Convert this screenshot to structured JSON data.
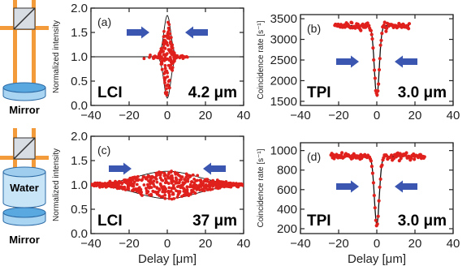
{
  "device": {
    "top_label": "Mirror",
    "water_label": "Water",
    "bottom_label": "Mirror"
  },
  "colors": {
    "points": "#e0201c",
    "fit": "#111111",
    "arrow": "#3a56b0",
    "beam": "#f39a3a",
    "axis": "#222222"
  },
  "chart_data": [
    {
      "id": "a",
      "type": "scatter",
      "panel_label": "(a)",
      "ylabel": "Normalized intensity",
      "xlabel": "",
      "xlim": [
        -40,
        40
      ],
      "ylim": [
        0,
        2
      ],
      "xticks": [
        "-40",
        "-20",
        "0",
        "20",
        "40"
      ],
      "yticks": [
        "0.0",
        "0.5",
        "1.0",
        "1.5",
        "2.0"
      ],
      "method_label": "LCI",
      "width_label": "4.2 μm",
      "coherence_length_um": 4.2,
      "baseline": 1.0,
      "modulation": 0.85,
      "n_points": 180,
      "arrows": "inward"
    },
    {
      "id": "b",
      "type": "scatter",
      "panel_label": "(b)",
      "ylabel": "Coincidence rate [s⁻¹]",
      "xlabel": "",
      "xlim": [
        -40,
        40
      ],
      "ylim": [
        1400,
        3600
      ],
      "xticks": [
        "-40",
        "-20",
        "0",
        "20",
        "40"
      ],
      "yticks": [
        "1500",
        "2000",
        "2500",
        "3000",
        "3500"
      ],
      "method_label": "TPI",
      "width_label": "3.0 μm",
      "dip_width_um": 3.0,
      "baseline": 3330,
      "minimum": 1620,
      "x_range": [
        -22,
        17
      ],
      "n_points": 110,
      "arrows": "inward"
    },
    {
      "id": "c",
      "type": "scatter",
      "panel_label": "(c)",
      "ylabel": "Normalized intensity",
      "xlabel": "Delay [μm]",
      "xlim": [
        -40,
        40
      ],
      "ylim": [
        0,
        2
      ],
      "xticks": [
        "-40",
        "-20",
        "0",
        "20",
        "40"
      ],
      "yticks": [
        "0.0",
        "0.5",
        "1.0",
        "1.5",
        "2.0"
      ],
      "method_label": "LCI",
      "width_label": "37 μm",
      "coherence_length_um": 37,
      "baseline": 1.0,
      "modulation": 0.28,
      "n_points": 600,
      "arrows": "inward"
    },
    {
      "id": "d",
      "type": "scatter",
      "panel_label": "(d)",
      "ylabel": "Coincidence rate [s⁻¹]",
      "xlabel": "Delay [μm]",
      "xlim": [
        -40,
        40
      ],
      "ylim": [
        150,
        1080
      ],
      "xticks": [
        "-40",
        "-20",
        "0",
        "20",
        "40"
      ],
      "yticks": [
        "200",
        "400",
        "600",
        "800",
        "1000"
      ],
      "method_label": "TPI",
      "width_label": "3.0 μm",
      "dip_width_um": 3.0,
      "baseline": 940,
      "minimum": 245,
      "x_range": [
        -24,
        25
      ],
      "n_points": 120,
      "arrows": "inward"
    }
  ]
}
